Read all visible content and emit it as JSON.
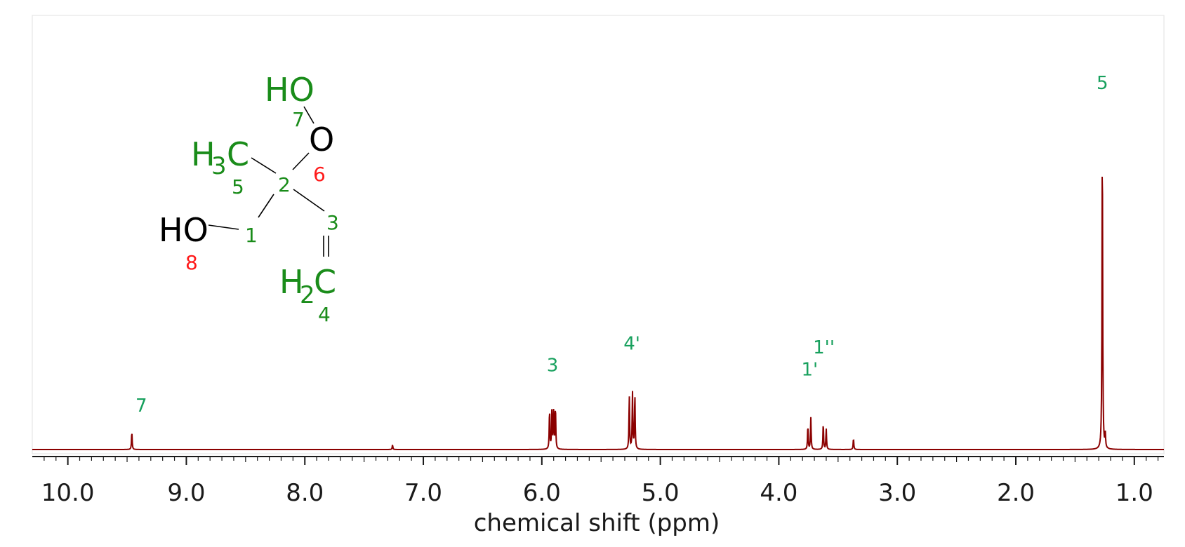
{
  "chart_data": {
    "type": "line",
    "xlabel": "chemical shift (ppm)",
    "xlim": [
      10.3,
      0.75
    ],
    "x_reversed": true,
    "ylim": [
      0,
      1.0
    ],
    "grid": false,
    "ticks": [
      {
        "value": 10.0,
        "label": "10.0"
      },
      {
        "value": 9.0,
        "label": "9.0"
      },
      {
        "value": 8.0,
        "label": "8.0"
      },
      {
        "value": 7.0,
        "label": "7.0"
      },
      {
        "value": 6.0,
        "label": "6.0"
      },
      {
        "value": 5.0,
        "label": "5.0"
      },
      {
        "value": 4.0,
        "label": "4.0"
      },
      {
        "value": 3.0,
        "label": "3.0"
      },
      {
        "value": 2.0,
        "label": "2.0"
      },
      {
        "value": 1.0,
        "label": "1.0"
      }
    ],
    "series": [
      {
        "color": "#8b0000",
        "peaks": [
          {
            "x": 9.46,
            "h": 0.045
          },
          {
            "x": 7.26,
            "h": 0.012
          },
          {
            "x": 5.935,
            "h": 0.098
          },
          {
            "x": 5.915,
            "h": 0.102
          },
          {
            "x": 5.9,
            "h": 0.104
          },
          {
            "x": 5.885,
            "h": 0.106
          },
          {
            "x": 5.262,
            "h": 0.135
          },
          {
            "x": 5.235,
            "h": 0.142
          },
          {
            "x": 5.215,
            "h": 0.14
          },
          {
            "x": 3.755,
            "h": 0.06
          },
          {
            "x": 3.73,
            "h": 0.08
          },
          {
            "x": 3.625,
            "h": 0.066
          },
          {
            "x": 3.6,
            "h": 0.052
          },
          {
            "x": 3.37,
            "h": 0.028
          },
          {
            "x": 1.27,
            "h": 0.8
          },
          {
            "x": 1.245,
            "h": 0.035
          }
        ]
      }
    ],
    "peak_labels": [
      {
        "text": "7",
        "x": 9.38,
        "y": 0.095
      },
      {
        "text": "3",
        "x": 5.91,
        "y": 0.195
      },
      {
        "text": "4'",
        "x": 5.24,
        "y": 0.25
      },
      {
        "text": "1''",
        "x": 3.62,
        "y": 0.24
      },
      {
        "text": "1'",
        "x": 3.74,
        "y": 0.185
      },
      {
        "text": "5",
        "x": 1.27,
        "y": 0.9
      }
    ],
    "molecule": {
      "atoms": [
        {
          "text": "HO",
          "color": "green"
        },
        {
          "text": "7",
          "color": "green"
        },
        {
          "text": "O",
          "color": "black"
        },
        {
          "text": "6",
          "color": "red"
        },
        {
          "text": "H",
          "color": "green"
        },
        {
          "text": "3",
          "color": "green"
        },
        {
          "text": "C",
          "color": "green"
        },
        {
          "text": "5",
          "color": "green"
        },
        {
          "text": "2",
          "color": "green"
        },
        {
          "text": "3",
          "color": "green"
        },
        {
          "text": "HO",
          "color": "black"
        },
        {
          "text": "1",
          "color": "green"
        },
        {
          "text": "8",
          "color": "red"
        },
        {
          "text": "H",
          "color": "green"
        },
        {
          "text": "2",
          "color": "green"
        },
        {
          "text": "C",
          "color": "green"
        },
        {
          "text": "4",
          "color": "green"
        }
      ]
    }
  }
}
